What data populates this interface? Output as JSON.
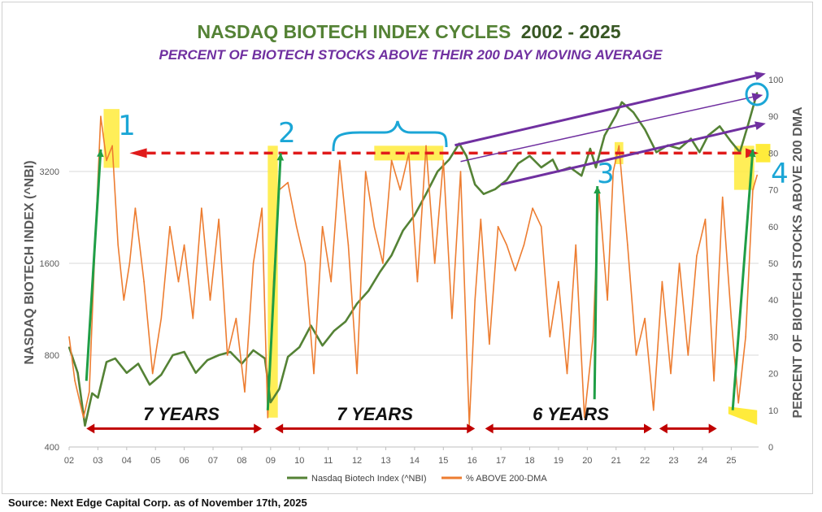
{
  "chart_data": {
    "type": "line",
    "title_main": "NASDAQ BIOTECH INDEX CYCLES",
    "title_years": "2002 - 2025",
    "subtitle": "PERCENT OF BIOTECH STOCKS ABOVE THEIR 200 DAY MOVING AVERAGE",
    "ylabel_left": "NASDAQ BIOTECH INDEX (^NBI)",
    "ylabel_right": "PERCENT OF BIOTECH STOCKS ABOVE 200 DMA",
    "y_left_ticks": [
      "400",
      "800",
      "1600",
      "3200"
    ],
    "y_right_ticks": [
      "0",
      "10",
      "20",
      "30",
      "40",
      "50",
      "60",
      "70",
      "80",
      "90",
      "100"
    ],
    "x_ticks": [
      "02",
      "03",
      "04",
      "05",
      "06",
      "07",
      "08",
      "09",
      "10",
      "11",
      "12",
      "13",
      "14",
      "15",
      "16",
      "17",
      "18",
      "19",
      "20",
      "21",
      "22",
      "23",
      "24",
      "25"
    ],
    "xlim": [
      2002.0,
      2025.95
    ],
    "ylim_left": [
      400,
      6400
    ],
    "ylim_right": [
      0,
      100
    ],
    "left_scale": "log",
    "series": [
      {
        "name": "Nasdaq Biotech Index (^NBI)",
        "color": "#548235",
        "axis": "left",
        "x": [
          2002.0,
          2002.3,
          2002.55,
          2002.8,
          2003.0,
          2003.3,
          2003.6,
          2004.0,
          2004.4,
          2004.8,
          2005.2,
          2005.6,
          2006.0,
          2006.4,
          2006.8,
          2007.2,
          2007.6,
          2008.0,
          2008.4,
          2008.8,
          2009.0,
          2009.3,
          2009.6,
          2010.0,
          2010.4,
          2010.8,
          2011.2,
          2011.6,
          2012.0,
          2012.4,
          2012.8,
          2013.2,
          2013.6,
          2014.0,
          2014.4,
          2014.8,
          2015.2,
          2015.55,
          2015.8,
          2016.1,
          2016.4,
          2016.8,
          2017.2,
          2017.6,
          2018.0,
          2018.4,
          2018.8,
          2019.0,
          2019.4,
          2019.8,
          2020.1,
          2020.3,
          2020.6,
          2021.0,
          2021.2,
          2021.6,
          2022.0,
          2022.4,
          2022.8,
          2023.2,
          2023.6,
          2023.9,
          2024.2,
          2024.6,
          2025.0,
          2025.3,
          2025.6,
          2025.9
        ],
        "values": [
          850,
          700,
          470,
          600,
          580,
          760,
          780,
          700,
          750,
          640,
          690,
          800,
          820,
          700,
          770,
          800,
          820,
          750,
          830,
          780,
          560,
          620,
          790,
          850,
          1000,
          860,
          960,
          1030,
          1180,
          1300,
          1500,
          1700,
          2050,
          2300,
          2700,
          3200,
          3500,
          3950,
          3600,
          2900,
          2700,
          2800,
          3000,
          3400,
          3600,
          3300,
          3500,
          3200,
          3300,
          3100,
          3800,
          3300,
          4200,
          4900,
          5400,
          5000,
          4400,
          3700,
          3900,
          3800,
          4100,
          3700,
          4200,
          4500,
          4000,
          3700,
          4600,
          5800
        ]
      },
      {
        "name": "% ABOVE 200-DMA",
        "color": "#ed7d31",
        "axis": "right",
        "x": [
          2002.0,
          2002.2,
          2002.5,
          2002.7,
          2002.9,
          2003.1,
          2003.3,
          2003.5,
          2003.7,
          2003.9,
          2004.1,
          2004.3,
          2004.6,
          2004.9,
          2005.2,
          2005.5,
          2005.8,
          2006.0,
          2006.3,
          2006.6,
          2006.9,
          2007.2,
          2007.5,
          2007.8,
          2008.1,
          2008.4,
          2008.7,
          2008.9,
          2009.1,
          2009.3,
          2009.6,
          2009.9,
          2010.2,
          2010.5,
          2010.8,
          2011.1,
          2011.4,
          2011.7,
          2012.0,
          2012.3,
          2012.6,
          2012.9,
          2013.2,
          2013.5,
          2013.8,
          2014.1,
          2014.4,
          2014.7,
          2015.0,
          2015.3,
          2015.6,
          2015.9,
          2016.1,
          2016.3,
          2016.6,
          2016.9,
          2017.2,
          2017.5,
          2017.8,
          2018.1,
          2018.4,
          2018.7,
          2019.0,
          2019.3,
          2019.6,
          2019.9,
          2020.2,
          2020.4,
          2020.7,
          2020.9,
          2021.1,
          2021.4,
          2021.7,
          2022.0,
          2022.3,
          2022.6,
          2022.9,
          2023.2,
          2023.5,
          2023.8,
          2024.1,
          2024.4,
          2024.7,
          2025.0,
          2025.25,
          2025.5,
          2025.75,
          2025.9
        ],
        "values": [
          30,
          18,
          8,
          15,
          55,
          90,
          78,
          82,
          55,
          40,
          50,
          65,
          45,
          20,
          35,
          60,
          45,
          55,
          35,
          65,
          40,
          62,
          25,
          35,
          15,
          50,
          65,
          8,
          45,
          70,
          72,
          60,
          50,
          20,
          60,
          45,
          78,
          55,
          20,
          75,
          60,
          50,
          78,
          70,
          80,
          45,
          82,
          50,
          78,
          35,
          75,
          6,
          40,
          62,
          28,
          60,
          55,
          48,
          55,
          65,
          60,
          30,
          45,
          20,
          55,
          8,
          30,
          70,
          40,
          75,
          82,
          55,
          25,
          35,
          10,
          45,
          20,
          50,
          25,
          52,
          62,
          18,
          68,
          35,
          12,
          30,
          70,
          74
        ]
      }
    ],
    "annotations": {
      "cycle_labels": [
        "7 YEARS",
        "7 YEARS",
        "6 YEARS"
      ],
      "hand_marks": [
        "1",
        "2",
        "3",
        "4",
        "0"
      ],
      "reference_level_pct": 80
    },
    "legend": [
      "Nasdaq Biotech Index (^NBI)",
      "% ABOVE 200-DMA"
    ],
    "source": "Source: Next Edge Capital Corp. as of November 17th, 2025"
  }
}
